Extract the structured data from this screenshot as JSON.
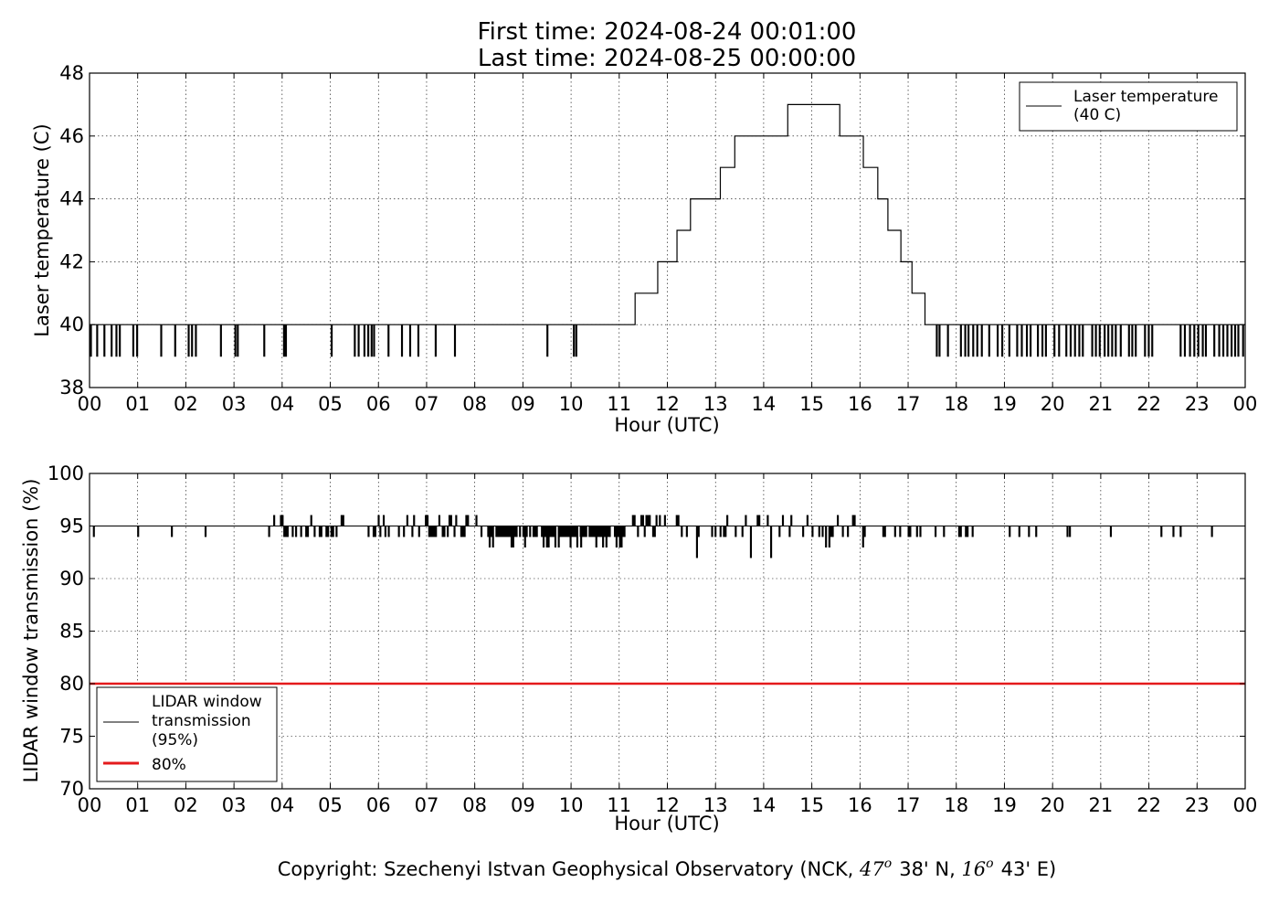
{
  "title": {
    "line1": "First time: 2024-08-24 00:01:00",
    "line2": "Last time: 2024-08-25 00:00:00"
  },
  "footer": {
    "prefix": "Copyright: Szechenyi Istvan Geophysical Observatory (NCK, ",
    "lat_deg": "47",
    "lat_min": "38' N, ",
    "lon_deg": "16",
    "lon_min": "43' E)",
    "degree_symbol": "o"
  },
  "chart_data": [
    {
      "type": "line",
      "xlabel": "Hour (UTC)",
      "ylabel": "Laser temperature (C)",
      "xlim": [
        0,
        24
      ],
      "ylim": [
        38,
        48
      ],
      "xtick_labels": [
        "00",
        "01",
        "02",
        "03",
        "04",
        "05",
        "06",
        "07",
        "08",
        "09",
        "10",
        "11",
        "12",
        "13",
        "14",
        "15",
        "16",
        "17",
        "18",
        "19",
        "20",
        "21",
        "22",
        "23",
        "00"
      ],
      "yticks": [
        38,
        40,
        42,
        44,
        46,
        48
      ],
      "grid": true,
      "legend_placement": "top-right",
      "legend": [
        {
          "name": "Laser temperature (40 C)",
          "lines": [
            "Laser temperature",
            "(40 C)"
          ],
          "color": "#000000"
        }
      ],
      "series": [
        {
          "name": "Laser temperature (40 C)",
          "color": "#000000",
          "base_value": 40,
          "steps": [
            {
              "x": 0.0,
              "y": 40
            },
            {
              "x": 11.33,
              "y": 41
            },
            {
              "x": 11.8,
              "y": 42
            },
            {
              "x": 12.2,
              "y": 43
            },
            {
              "x": 12.48,
              "y": 44
            },
            {
              "x": 13.1,
              "y": 45
            },
            {
              "x": 13.4,
              "y": 46
            },
            {
              "x": 14.5,
              "y": 47
            },
            {
              "x": 15.58,
              "y": 46
            },
            {
              "x": 16.07,
              "y": 45
            },
            {
              "x": 16.37,
              "y": 44
            },
            {
              "x": 16.58,
              "y": 43
            },
            {
              "x": 16.85,
              "y": 42
            },
            {
              "x": 17.08,
              "y": 41
            },
            {
              "x": 17.35,
              "y": 40
            },
            {
              "x": 24.0,
              "y": 40
            }
          ],
          "dips_to_39": [
            0.02,
            0.15,
            0.3,
            0.45,
            0.55,
            0.62,
            0.9,
            0.98,
            1.48,
            1.77,
            2.05,
            2.12,
            2.2,
            2.72,
            3.02,
            3.07,
            3.62,
            4.03,
            4.07,
            5.02,
            5.5,
            5.58,
            5.7,
            5.78,
            5.85,
            5.9,
            6.2,
            6.48,
            6.65,
            6.82,
            7.18,
            7.58,
            9.5,
            10.05,
            10.1
          ],
          "dense_dip_interval": [
            17.55,
            24.0
          ],
          "dense_dip_spacing": 0.085
        }
      ]
    },
    {
      "type": "line",
      "xlabel": "Hour (UTC)",
      "ylabel": "LIDAR window transmission (%)",
      "xlim": [
        0,
        24
      ],
      "ylim": [
        70,
        100
      ],
      "xtick_labels": [
        "00",
        "01",
        "02",
        "03",
        "04",
        "05",
        "06",
        "07",
        "08",
        "09",
        "10",
        "11",
        "12",
        "13",
        "14",
        "15",
        "16",
        "17",
        "18",
        "19",
        "20",
        "21",
        "22",
        "23",
        "00"
      ],
      "yticks": [
        70,
        75,
        80,
        85,
        90,
        95,
        100
      ],
      "grid": true,
      "legend_placement": "lower-left",
      "legend": [
        {
          "name": "LIDAR window transmission (95%)",
          "lines": [
            "LIDAR window",
            "transmission",
            "(95%)"
          ],
          "color": "#000000"
        },
        {
          "name": "80%",
          "lines": [
            "80%"
          ],
          "color": "#e41a1c"
        }
      ],
      "series": [
        {
          "name": "LIDAR window transmission (95%)",
          "color": "#000000",
          "base_value": 95,
          "isolated_dips": [
            0.08,
            1.0,
            1.7,
            2.4,
            19.1,
            19.3,
            19.5,
            19.65,
            20.3,
            20.35,
            21.2,
            22.25,
            22.5,
            22.65,
            23.3
          ],
          "noisy_segments": [
            {
              "from": 3.65,
              "to": 8.3,
              "base": 95,
              "low": 94,
              "high": 96
            },
            {
              "from": 8.3,
              "to": 10.2,
              "base": 94,
              "low": 93,
              "high": 95
            },
            {
              "from": 10.2,
              "to": 11.1,
              "base": 93.5,
              "low": 93,
              "high": 95
            },
            {
              "from": 11.1,
              "to": 14.9,
              "base": 94.5,
              "low": 92,
              "high": 96
            },
            {
              "from": 14.9,
              "to": 16.3,
              "base": 95,
              "low": 93,
              "high": 96
            },
            {
              "from": 16.3,
              "to": 18.5,
              "base": 95,
              "low": 94,
              "high": 95
            }
          ]
        },
        {
          "name": "80%",
          "color": "#e41a1c",
          "x": [
            0,
            24
          ],
          "y": [
            80,
            80
          ]
        }
      ]
    }
  ]
}
